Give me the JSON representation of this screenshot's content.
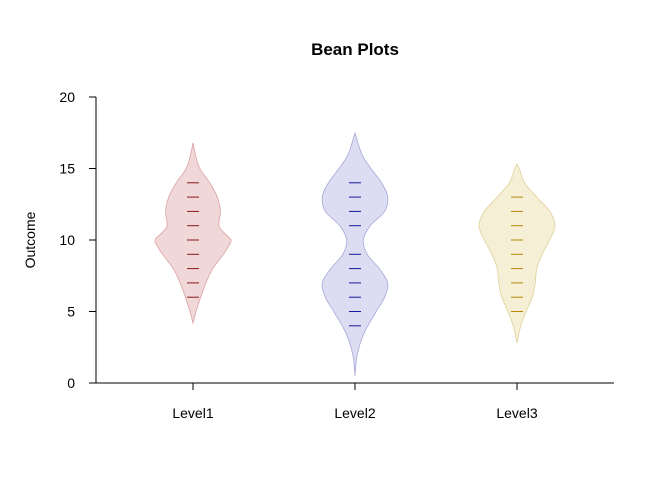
{
  "chart_data": {
    "type": "beanplot",
    "title": "Bean Plots",
    "xlabel": "",
    "ylabel": "Outcome",
    "ylim": [
      0,
      20
    ],
    "yticks": [
      0,
      5,
      10,
      15,
      20
    ],
    "categories": [
      "Level1",
      "Level2",
      "Level3"
    ],
    "series": [
      {
        "category": "Level1",
        "fill_color": "#f0d8d8",
        "line_color": "#8b1a1a",
        "outline_color": "#dda0a0",
        "density": [
          [
            4.2,
            0.0
          ],
          [
            5.0,
            0.08
          ],
          [
            6.0,
            0.2
          ],
          [
            7.0,
            0.34
          ],
          [
            8.0,
            0.52
          ],
          [
            9.0,
            0.8
          ],
          [
            9.5,
            0.92
          ],
          [
            10.0,
            1.0
          ],
          [
            10.5,
            0.82
          ],
          [
            11.0,
            0.68
          ],
          [
            12.0,
            0.72
          ],
          [
            13.0,
            0.64
          ],
          [
            14.0,
            0.44
          ],
          [
            15.0,
            0.18
          ],
          [
            16.0,
            0.06
          ],
          [
            16.8,
            0.0
          ]
        ],
        "beanlines": [
          6,
          7,
          8,
          9,
          10,
          11,
          12,
          13,
          14
        ]
      },
      {
        "category": "Level2",
        "fill_color": "#dcdcf2",
        "line_color": "#1a1a9e",
        "outline_color": "#a8a8d8",
        "density": [
          [
            0.5,
            0.0
          ],
          [
            2.0,
            0.06
          ],
          [
            3.5,
            0.24
          ],
          [
            5.0,
            0.56
          ],
          [
            6.0,
            0.78
          ],
          [
            7.0,
            0.86
          ],
          [
            8.0,
            0.64
          ],
          [
            9.0,
            0.32
          ],
          [
            10.0,
            0.22
          ],
          [
            11.0,
            0.4
          ],
          [
            12.0,
            0.78
          ],
          [
            13.0,
            0.86
          ],
          [
            14.0,
            0.7
          ],
          [
            15.0,
            0.42
          ],
          [
            16.0,
            0.18
          ],
          [
            17.5,
            0.0
          ]
        ],
        "beanlines": [
          4,
          5,
          6,
          7,
          8,
          9,
          11,
          12,
          13,
          14
        ]
      },
      {
        "category": "Level3",
        "fill_color": "#f5efd6",
        "line_color": "#b8860b",
        "outline_color": "#e0d09a",
        "density": [
          [
            2.8,
            0.0
          ],
          [
            4.0,
            0.1
          ],
          [
            5.0,
            0.24
          ],
          [
            6.0,
            0.4
          ],
          [
            7.0,
            0.48
          ],
          [
            8.0,
            0.52
          ],
          [
            9.0,
            0.66
          ],
          [
            10.0,
            0.86
          ],
          [
            11.0,
            1.0
          ],
          [
            12.0,
            0.86
          ],
          [
            13.0,
            0.52
          ],
          [
            14.0,
            0.2
          ],
          [
            15.0,
            0.06
          ],
          [
            15.3,
            0.0
          ]
        ],
        "beanlines": [
          5,
          6,
          7,
          8,
          9,
          10,
          11,
          12,
          13
        ]
      }
    ]
  }
}
